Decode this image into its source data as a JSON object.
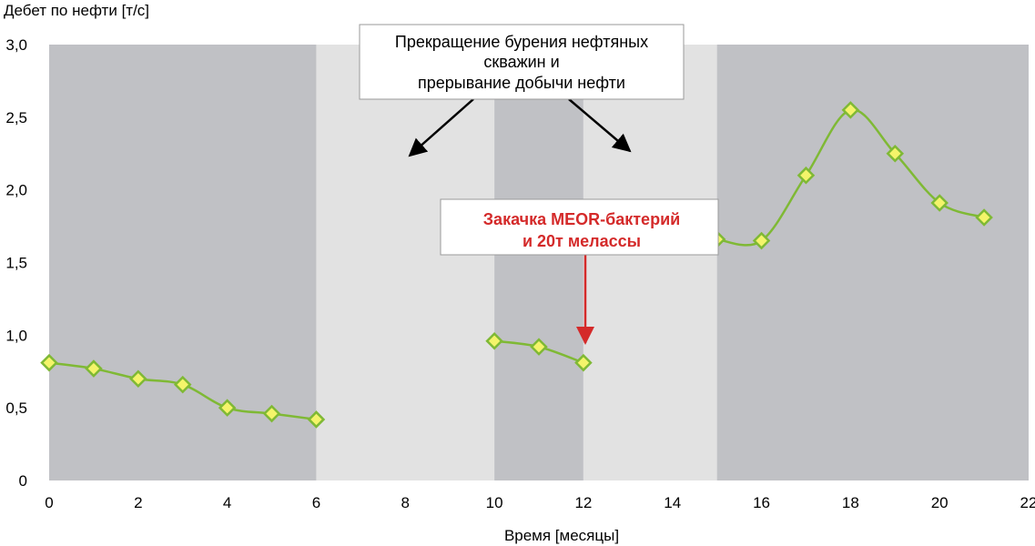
{
  "chart_data": {
    "type": "line",
    "ylabel": "Дебет по нефти [т/с]",
    "xlabel": "Время [месяцы]",
    "xlim": [
      0,
      22
    ],
    "ylim": [
      0,
      3
    ],
    "x_ticks": [
      "0",
      "2",
      "4",
      "6",
      "8",
      "10",
      "12",
      "14",
      "16",
      "18",
      "20",
      "22"
    ],
    "y_ticks": [
      "0",
      "0,5",
      "1,0",
      "1,5",
      "2,0",
      "2,5",
      "3,0"
    ],
    "grid": false,
    "background_bands": [
      {
        "from": 0,
        "to": 6,
        "color": "#c0c1c5"
      },
      {
        "from": 6,
        "to": 10,
        "color": "#e2e2e2"
      },
      {
        "from": 10,
        "to": 12,
        "color": "#c0c1c5"
      },
      {
        "from": 12,
        "to": 15,
        "color": "#e2e2e2"
      },
      {
        "from": 15,
        "to": 22,
        "color": "#c0c1c5"
      }
    ],
    "series": [
      {
        "segments": [
          {
            "x": [
              0,
              1,
              2,
              3,
              4,
              5,
              6
            ],
            "y": [
              0.81,
              0.77,
              0.7,
              0.66,
              0.5,
              0.46,
              0.42
            ]
          },
          {
            "x": [
              10,
              11,
              12
            ],
            "y": [
              0.96,
              0.92,
              0.81
            ]
          },
          {
            "x": [
              15,
              16,
              17,
              18,
              19,
              20,
              21
            ],
            "y": [
              1.66,
              1.65,
              2.1,
              2.55,
              2.25,
              1.91,
              1.81
            ]
          }
        ],
        "line_color": "#7fb935",
        "marker_fill": "#f4f46a",
        "marker": "diamond"
      }
    ],
    "annotations": [
      {
        "id": "stop",
        "lines": [
          "Прекращение бурения нефтяных",
          "скважин и",
          "прерывание добычи нефти"
        ],
        "color": "#000000"
      },
      {
        "id": "meor",
        "lines": [
          "Закачка MEOR-бактерий",
          "и 20т мелассы"
        ],
        "color": "#d42a2a"
      }
    ]
  }
}
